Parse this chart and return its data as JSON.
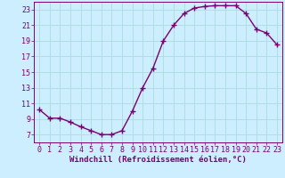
{
  "x": [
    0,
    1,
    2,
    3,
    4,
    5,
    6,
    7,
    8,
    9,
    10,
    11,
    12,
    13,
    14,
    15,
    16,
    17,
    18,
    19,
    20,
    21,
    22,
    23
  ],
  "y": [
    10.2,
    9.1,
    9.1,
    8.6,
    8.0,
    7.5,
    7.0,
    7.0,
    7.5,
    10.0,
    13.0,
    15.5,
    19.0,
    21.0,
    22.5,
    23.2,
    23.4,
    23.5,
    23.5,
    23.5,
    22.5,
    20.5,
    20.0,
    18.5
  ],
  "line_color": "#7b0070",
  "marker": "+",
  "marker_size": 4,
  "line_width": 1.0,
  "bg_color": "#cceeff",
  "grid_color": "#aadddd",
  "xlabel": "Windchill (Refroidissement éolien,°C)",
  "xlabel_fontsize": 6.5,
  "tick_fontsize": 6.0,
  "ylim": [
    6.0,
    24.0
  ],
  "xlim": [
    -0.5,
    23.5
  ],
  "yticks": [
    7,
    9,
    11,
    13,
    15,
    17,
    19,
    21,
    23
  ],
  "xticks": [
    0,
    1,
    2,
    3,
    4,
    5,
    6,
    7,
    8,
    9,
    10,
    11,
    12,
    13,
    14,
    15,
    16,
    17,
    18,
    19,
    20,
    21,
    22,
    23
  ],
  "spine_color": "#7b0070",
  "text_color": "#7b0070"
}
